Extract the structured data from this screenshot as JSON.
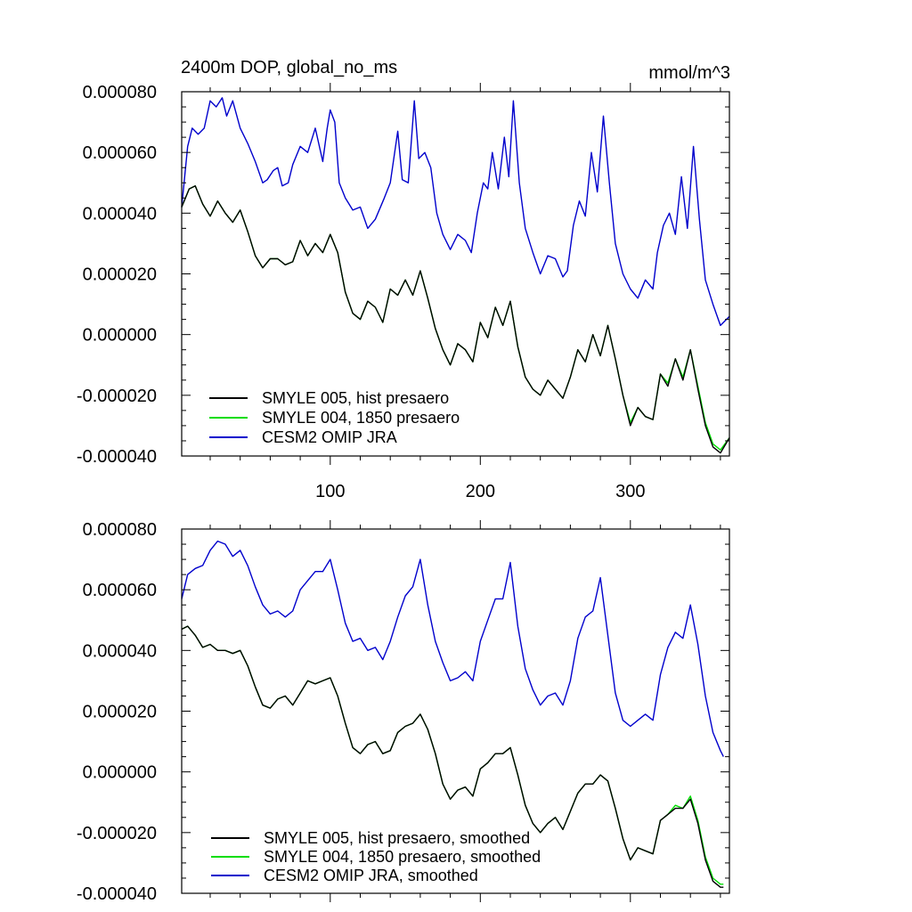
{
  "chart_data": [
    {
      "type": "line",
      "title_left": "2400m DOP, global_no_ms",
      "title_right": "mmol/m^3",
      "xlim": [
        1,
        366
      ],
      "ylim": [
        -4e-05,
        8e-05
      ],
      "xticks": [
        100,
        200,
        300
      ],
      "xtick_labels": [
        "100",
        "200",
        "300"
      ],
      "yticks": [
        -4e-05,
        -2e-05,
        0.0,
        2e-05,
        4e-05,
        6e-05,
        8e-05
      ],
      "ytick_labels": [
        "-0.000040",
        "-0.000020",
        "0.000000",
        "0.000020",
        "0.000040",
        "0.000060",
        "0.000080"
      ],
      "legend_position": "bottom-left",
      "series": [
        {
          "name": "SMYLE 005, hist presaero",
          "color": "#000000",
          "x": [
            1,
            6,
            10,
            15,
            20,
            25,
            30,
            35,
            40,
            45,
            50,
            55,
            60,
            65,
            70,
            75,
            80,
            85,
            90,
            95,
            100,
            105,
            110,
            115,
            120,
            125,
            130,
            135,
            140,
            145,
            150,
            155,
            160,
            165,
            170,
            175,
            180,
            185,
            190,
            195,
            200,
            205,
            210,
            215,
            220,
            225,
            230,
            235,
            240,
            245,
            250,
            255,
            260,
            265,
            270,
            275,
            280,
            285,
            290,
            295,
            300,
            305,
            310,
            315,
            320,
            325,
            330,
            335,
            340,
            345,
            350,
            355,
            360,
            366
          ],
          "values": [
            4.2e-05,
            4.8e-05,
            4.9e-05,
            4.3e-05,
            3.9e-05,
            4.4e-05,
            4e-05,
            3.7e-05,
            4.1e-05,
            3.4e-05,
            2.6e-05,
            2.2e-05,
            2.5e-05,
            2.5e-05,
            2.3e-05,
            2.4e-05,
            3.1e-05,
            2.6e-05,
            3e-05,
            2.7e-05,
            3.3e-05,
            2.7e-05,
            1.4e-05,
            7e-06,
            5e-06,
            1.1e-05,
            9e-06,
            4e-06,
            1.5e-05,
            1.3e-05,
            1.8e-05,
            1.3e-05,
            2.1e-05,
            1.2e-05,
            2e-06,
            -5e-06,
            -1e-05,
            -3e-06,
            -5e-06,
            -9e-06,
            4e-06,
            -1e-06,
            9e-06,
            3e-06,
            1.1e-05,
            -4e-06,
            -1.4e-05,
            -1.8e-05,
            -2e-05,
            -1.5e-05,
            -1.8e-05,
            -2.1e-05,
            -1.4e-05,
            -5e-06,
            -9e-06,
            0.0,
            -7e-06,
            3e-06,
            -8e-06,
            -2e-05,
            -3e-05,
            -2.4e-05,
            -2.7e-05,
            -2.8e-05,
            -1.3e-05,
            -1.7e-05,
            -8e-06,
            -1.5e-05,
            -5e-06,
            -1.8e-05,
            -3e-05,
            -3.7e-05,
            -3.9e-05,
            -3.4e-05
          ]
        },
        {
          "name": "SMYLE 004, 1850 presaero",
          "color": "#00dd00",
          "x": [
            1,
            6,
            10,
            15,
            20,
            25,
            30,
            35,
            40,
            45,
            50,
            55,
            60,
            65,
            70,
            75,
            80,
            85,
            90,
            95,
            100,
            105,
            110,
            115,
            120,
            125,
            130,
            135,
            140,
            145,
            150,
            155,
            160,
            165,
            170,
            175,
            180,
            185,
            190,
            195,
            200,
            205,
            210,
            215,
            220,
            225,
            230,
            235,
            240,
            245,
            250,
            255,
            260,
            265,
            270,
            275,
            280,
            285,
            290,
            295,
            300,
            305,
            310,
            315,
            320,
            325,
            330,
            335,
            340,
            345,
            350,
            355,
            360,
            366
          ],
          "values": [
            4.2e-05,
            4.8e-05,
            4.9e-05,
            4.3e-05,
            3.9e-05,
            4.4e-05,
            4e-05,
            3.7e-05,
            4.1e-05,
            3.4e-05,
            2.6e-05,
            2.2e-05,
            2.5e-05,
            2.5e-05,
            2.3e-05,
            2.4e-05,
            3.1e-05,
            2.6e-05,
            3e-05,
            2.7e-05,
            3.3e-05,
            2.7e-05,
            1.4e-05,
            7e-06,
            5e-06,
            1.1e-05,
            9e-06,
            4e-06,
            1.5e-05,
            1.3e-05,
            1.8e-05,
            1.3e-05,
            2.1e-05,
            1.2e-05,
            2e-06,
            -5e-06,
            -1e-05,
            -3e-06,
            -5e-06,
            -9e-06,
            4e-06,
            -1e-06,
            9e-06,
            3e-06,
            1.1e-05,
            -4e-06,
            -1.4e-05,
            -1.8e-05,
            -2e-05,
            -1.5e-05,
            -1.8e-05,
            -2.1e-05,
            -1.4e-05,
            -5e-06,
            -9e-06,
            0.0,
            -7e-06,
            3e-06,
            -8e-06,
            -2e-05,
            -2.9e-05,
            -2.4e-05,
            -2.7e-05,
            -2.8e-05,
            -1.3e-05,
            -1.6e-05,
            -8e-06,
            -1.4e-05,
            -5e-06,
            -1.7e-05,
            -2.9e-05,
            -3.6e-05,
            -3.8e-05,
            -3.4e-05
          ]
        },
        {
          "name": "CESM2 OMIP JRA",
          "color": "#0000cc",
          "x": [
            1,
            5,
            8,
            12,
            16,
            20,
            24,
            28,
            31,
            35,
            40,
            45,
            50,
            55,
            58,
            62,
            65,
            68,
            72,
            75,
            80,
            85,
            90,
            95,
            98,
            100,
            103,
            106,
            110,
            115,
            120,
            125,
            130,
            136,
            140,
            145,
            148,
            152,
            156,
            159,
            163,
            167,
            171,
            175,
            180,
            185,
            190,
            194,
            198,
            202,
            205,
            208,
            212,
            216,
            219,
            222,
            226,
            230,
            235,
            240,
            245,
            250,
            255,
            258,
            262,
            266,
            270,
            274,
            278,
            282,
            286,
            290,
            295,
            300,
            305,
            310,
            315,
            318,
            322,
            326,
            330,
            334,
            338,
            342,
            346,
            350,
            355,
            360,
            366
          ],
          "values": [
            4.2e-05,
            6.2e-05,
            6.8e-05,
            6.6e-05,
            6.8e-05,
            7.7e-05,
            7.5e-05,
            7.8e-05,
            7.2e-05,
            7.7e-05,
            6.8e-05,
            6.3e-05,
            5.7e-05,
            5e-05,
            5.1e-05,
            5.4e-05,
            5.5e-05,
            4.9e-05,
            5e-05,
            5.6e-05,
            6.2e-05,
            6e-05,
            6.8e-05,
            5.7e-05,
            6.8e-05,
            7.4e-05,
            7e-05,
            5e-05,
            4.5e-05,
            4.1e-05,
            4.2e-05,
            3.5e-05,
            3.8e-05,
            4.5e-05,
            5e-05,
            6.7e-05,
            5.1e-05,
            5e-05,
            7.7e-05,
            5.8e-05,
            6e-05,
            5.5e-05,
            4e-05,
            3.3e-05,
            2.8e-05,
            3.3e-05,
            3.1e-05,
            2.7e-05,
            4e-05,
            5e-05,
            4.8e-05,
            6e-05,
            4.8e-05,
            6.5e-05,
            5.2e-05,
            7.7e-05,
            5e-05,
            3.5e-05,
            2.7e-05,
            2e-05,
            2.6e-05,
            2.5e-05,
            1.9e-05,
            2.1e-05,
            3.6e-05,
            4.4e-05,
            3.9e-05,
            6e-05,
            4.7e-05,
            7.2e-05,
            5e-05,
            3e-05,
            2e-05,
            1.5e-05,
            1.2e-05,
            1.8e-05,
            1.5e-05,
            2.7e-05,
            3.6e-05,
            4e-05,
            3.3e-05,
            5.2e-05,
            3.5e-05,
            6.2e-05,
            3.8e-05,
            1.8e-05,
            1e-05,
            3e-06,
            6e-06
          ]
        }
      ]
    },
    {
      "type": "line",
      "xlim": [
        1,
        366
      ],
      "ylim": [
        -4e-05,
        8e-05
      ],
      "xticks": [
        100,
        200,
        300
      ],
      "xtick_labels": [],
      "yticks": [
        -4e-05,
        -2e-05,
        0.0,
        2e-05,
        4e-05,
        6e-05,
        8e-05
      ],
      "ytick_labels": [
        "-0.000040",
        "-0.000020",
        "0.000000",
        "0.000020",
        "0.000040",
        "0.000060",
        "0.000080"
      ],
      "legend_position": "bottom-left",
      "series": [
        {
          "name": "SMYLE 005, hist presaero, smoothed",
          "color": "#000000",
          "x": [
            1,
            5,
            10,
            15,
            20,
            25,
            30,
            35,
            40,
            45,
            50,
            55,
            60,
            65,
            70,
            75,
            80,
            85,
            90,
            95,
            100,
            105,
            110,
            115,
            120,
            125,
            130,
            135,
            140,
            145,
            150,
            155,
            160,
            165,
            170,
            175,
            180,
            185,
            190,
            195,
            200,
            205,
            210,
            215,
            220,
            225,
            230,
            235,
            240,
            245,
            250,
            255,
            260,
            265,
            270,
            275,
            280,
            285,
            290,
            295,
            300,
            305,
            310,
            315,
            320,
            325,
            330,
            335,
            340,
            345,
            350,
            355,
            360,
            362
          ],
          "values": [
            4.7e-05,
            4.8e-05,
            4.5e-05,
            4.1e-05,
            4.2e-05,
            4e-05,
            4e-05,
            3.9e-05,
            4e-05,
            3.5e-05,
            2.8e-05,
            2.2e-05,
            2.1e-05,
            2.4e-05,
            2.5e-05,
            2.2e-05,
            2.6e-05,
            3e-05,
            2.9e-05,
            3e-05,
            3.1e-05,
            2.5e-05,
            1.6e-05,
            8e-06,
            6e-06,
            9e-06,
            1e-05,
            6e-06,
            7e-06,
            1.3e-05,
            1.5e-05,
            1.6e-05,
            1.9e-05,
            1.4e-05,
            6e-06,
            -4e-06,
            -9e-06,
            -6e-06,
            -5e-06,
            -8e-06,
            1e-06,
            3e-06,
            6e-06,
            6e-06,
            8e-06,
            -1e-06,
            -1.1e-05,
            -1.7e-05,
            -2e-05,
            -1.7e-05,
            -1.5e-05,
            -1.9e-05,
            -1.3e-05,
            -7e-06,
            -4e-06,
            -4e-06,
            -1e-06,
            -3e-06,
            -1.2e-05,
            -2.2e-05,
            -2.9e-05,
            -2.5e-05,
            -2.6e-05,
            -2.7e-05,
            -1.6e-05,
            -1.4e-05,
            -1.2e-05,
            -1.2e-05,
            -9e-06,
            -1.7e-05,
            -2.9e-05,
            -3.6e-05,
            -3.8e-05,
            -3.8e-05
          ]
        },
        {
          "name": "SMYLE 004, 1850 presaero, smoothed",
          "color": "#00dd00",
          "x": [
            1,
            5,
            10,
            15,
            20,
            25,
            30,
            35,
            40,
            45,
            50,
            55,
            60,
            65,
            70,
            75,
            80,
            85,
            90,
            95,
            100,
            105,
            110,
            115,
            120,
            125,
            130,
            135,
            140,
            145,
            150,
            155,
            160,
            165,
            170,
            175,
            180,
            185,
            190,
            195,
            200,
            205,
            210,
            215,
            220,
            225,
            230,
            235,
            240,
            245,
            250,
            255,
            260,
            265,
            270,
            275,
            280,
            285,
            290,
            295,
            300,
            305,
            310,
            315,
            320,
            325,
            330,
            335,
            340,
            345,
            350,
            355,
            360,
            362
          ],
          "values": [
            4.7e-05,
            4.8e-05,
            4.5e-05,
            4.1e-05,
            4.2e-05,
            4e-05,
            4e-05,
            3.9e-05,
            4e-05,
            3.5e-05,
            2.8e-05,
            2.2e-05,
            2.1e-05,
            2.4e-05,
            2.5e-05,
            2.2e-05,
            2.6e-05,
            3e-05,
            2.9e-05,
            3e-05,
            3.1e-05,
            2.5e-05,
            1.6e-05,
            8e-06,
            6e-06,
            9e-06,
            1e-05,
            6e-06,
            7e-06,
            1.3e-05,
            1.5e-05,
            1.6e-05,
            1.9e-05,
            1.4e-05,
            6e-06,
            -4e-06,
            -9e-06,
            -6e-06,
            -5e-06,
            -8e-06,
            1e-06,
            3e-06,
            6e-06,
            6e-06,
            8e-06,
            -1e-06,
            -1.1e-05,
            -1.7e-05,
            -2e-05,
            -1.7e-05,
            -1.5e-05,
            -1.9e-05,
            -1.3e-05,
            -7e-06,
            -4e-06,
            -4e-06,
            -1e-06,
            -3e-06,
            -1.2e-05,
            -2.2e-05,
            -2.9e-05,
            -2.5e-05,
            -2.6e-05,
            -2.7e-05,
            -1.6e-05,
            -1.4e-05,
            -1.1e-05,
            -1.2e-05,
            -8e-06,
            -1.6e-05,
            -2.8e-05,
            -3.5e-05,
            -3.7e-05,
            -3.7e-05
          ]
        },
        {
          "name": "CESM2 OMIP JRA, smoothed",
          "color": "#0000cc",
          "x": [
            1,
            5,
            10,
            15,
            20,
            25,
            30,
            35,
            40,
            45,
            50,
            55,
            60,
            65,
            70,
            75,
            80,
            85,
            90,
            95,
            100,
            105,
            110,
            115,
            120,
            125,
            130,
            135,
            140,
            145,
            150,
            155,
            160,
            165,
            170,
            175,
            180,
            185,
            190,
            195,
            200,
            205,
            210,
            215,
            220,
            225,
            230,
            235,
            240,
            245,
            250,
            255,
            260,
            265,
            270,
            275,
            280,
            285,
            290,
            295,
            300,
            305,
            310,
            315,
            320,
            325,
            330,
            335,
            340,
            345,
            350,
            355,
            360,
            362
          ],
          "values": [
            5.7e-05,
            6.5e-05,
            6.7e-05,
            6.8e-05,
            7.3e-05,
            7.6e-05,
            7.5e-05,
            7.1e-05,
            7.3e-05,
            6.8e-05,
            6.1e-05,
            5.5e-05,
            5.2e-05,
            5.3e-05,
            5.1e-05,
            5.3e-05,
            6e-05,
            6.3e-05,
            6.6e-05,
            6.6e-05,
            7e-05,
            6e-05,
            4.9e-05,
            4.3e-05,
            4.4e-05,
            4e-05,
            4.1e-05,
            3.7e-05,
            4.3e-05,
            5.1e-05,
            5.8e-05,
            6.1e-05,
            7e-05,
            5.5e-05,
            4.3e-05,
            3.6e-05,
            3e-05,
            3.1e-05,
            3.3e-05,
            3e-05,
            4.3e-05,
            5e-05,
            5.7e-05,
            5.7e-05,
            6.9e-05,
            4.8e-05,
            3.4e-05,
            2.7e-05,
            2.2e-05,
            2.5e-05,
            2.6e-05,
            2.2e-05,
            3e-05,
            4.4e-05,
            5.1e-05,
            5.3e-05,
            6.4e-05,
            4.5e-05,
            2.6e-05,
            1.7e-05,
            1.5e-05,
            1.7e-05,
            1.9e-05,
            1.7e-05,
            3.2e-05,
            4.1e-05,
            4.6e-05,
            4.4e-05,
            5.5e-05,
            4.2e-05,
            2.5e-05,
            1.3e-05,
            7e-06,
            5e-06
          ]
        }
      ]
    }
  ]
}
